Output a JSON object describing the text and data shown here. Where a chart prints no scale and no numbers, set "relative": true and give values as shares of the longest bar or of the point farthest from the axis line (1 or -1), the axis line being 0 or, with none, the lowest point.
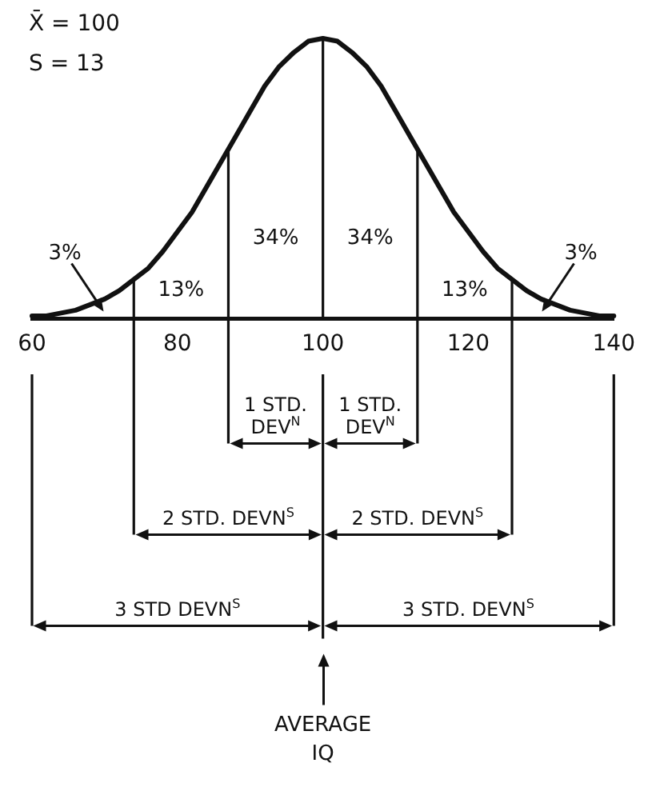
{
  "chart_data": {
    "type": "line",
    "relative": true,
    "x": [
      60,
      62,
      64,
      66,
      68,
      70,
      72,
      74,
      76,
      78,
      80,
      82,
      84,
      86,
      88,
      90,
      92,
      94,
      96,
      98,
      100,
      102,
      104,
      106,
      108,
      110,
      112,
      114,
      116,
      118,
      120,
      122,
      124,
      126,
      128,
      130,
      132,
      134,
      136,
      138,
      140
    ],
    "series": [
      {
        "color": "#111111",
        "values": [
          0.01,
          0.01,
          0.02,
          0.03,
          0.05,
          0.07,
          0.1,
          0.14,
          0.18,
          0.24,
          0.31,
          0.38,
          0.47,
          0.56,
          0.65,
          0.74,
          0.83,
          0.9,
          0.95,
          0.99,
          1,
          0.99,
          0.95,
          0.9,
          0.83,
          0.74,
          0.65,
          0.56,
          0.47,
          0.38,
          0.31,
          0.24,
          0.18,
          0.14,
          0.1,
          0.07,
          0.05,
          0.03,
          0.02,
          0.01,
          0.01
        ]
      }
    ],
    "xlim": [
      60,
      140
    ],
    "xticks": [
      60,
      80,
      100,
      120,
      140
    ],
    "ref_lines": [
      {
        "axis": "x",
        "value": 74
      },
      {
        "axis": "x",
        "value": 87
      },
      {
        "axis": "x",
        "value": 100,
        "label": "AVERAGE IQ"
      },
      {
        "axis": "x",
        "value": 113
      },
      {
        "axis": "x",
        "value": 126
      }
    ],
    "annotations": [
      "X̄ = 100",
      "S = 13",
      "3%",
      "13%",
      "34%",
      "34%",
      "13%",
      "3%",
      "1 STD. DEV$^{N}$",
      "1 STD. DEV$^{N}$",
      "2 STD. DEVN$^{S}$",
      "2 STD. DEVN$^{S}$",
      "3 STD DEVN$^{S}$",
      "3 STD. DEVN$^{S}$"
    ]
  }
}
